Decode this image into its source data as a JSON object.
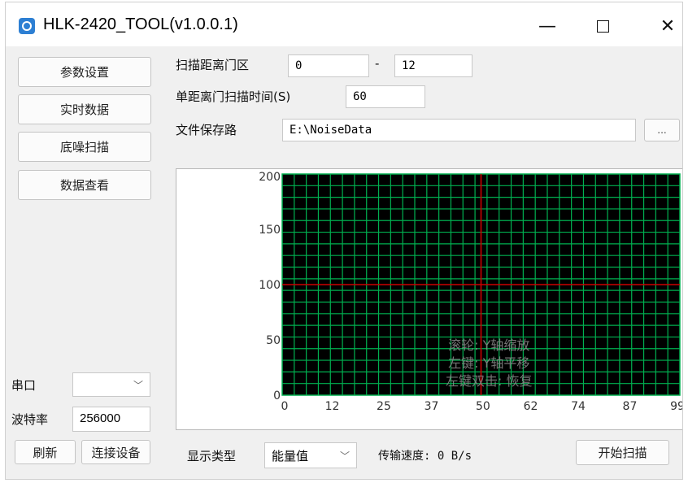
{
  "window": {
    "title": "HLK-2420_TOOL(v1.0.0.1)"
  },
  "nav": {
    "param_settings": "参数设置",
    "realtime_data": "实时数据",
    "noise_scan": "底噪扫描",
    "data_view": "数据查看"
  },
  "scan": {
    "range_label": "扫描距离门区",
    "range_start": "0",
    "range_sep": "-",
    "range_end": "12",
    "time_label": "单距离门扫描时间(S)",
    "time_value": "60",
    "path_label": "文件保存路",
    "path_value": "E:\\NoiseData",
    "browse_label": "..."
  },
  "serial": {
    "port_label": "串口",
    "port_value": "",
    "baud_label": "波特率",
    "baud_value": "256000",
    "refresh_label": "刷新",
    "connect_label": "连接设备"
  },
  "bottom": {
    "display_type_label": "显示类型",
    "display_type_value": "能量值",
    "transfer_speed": "传输速度: 0 B/s",
    "start_scan_label": "开始扫描"
  },
  "chart_data": {
    "type": "line",
    "ylim": [
      0,
      200
    ],
    "yticks": [
      "200",
      "150",
      "100",
      "50",
      "0"
    ],
    "xticks": [
      "0",
      "12",
      "25",
      "37",
      "50",
      "62",
      "74",
      "87",
      "99"
    ],
    "series": [],
    "hint_lines": [
      "滚轮: Y轴缩放",
      "左键: Y轴平移",
      "左键双击: 恢复"
    ],
    "colors": {
      "background": "#000000",
      "grid": "#00b050",
      "crosshair": "#cc0000"
    }
  }
}
